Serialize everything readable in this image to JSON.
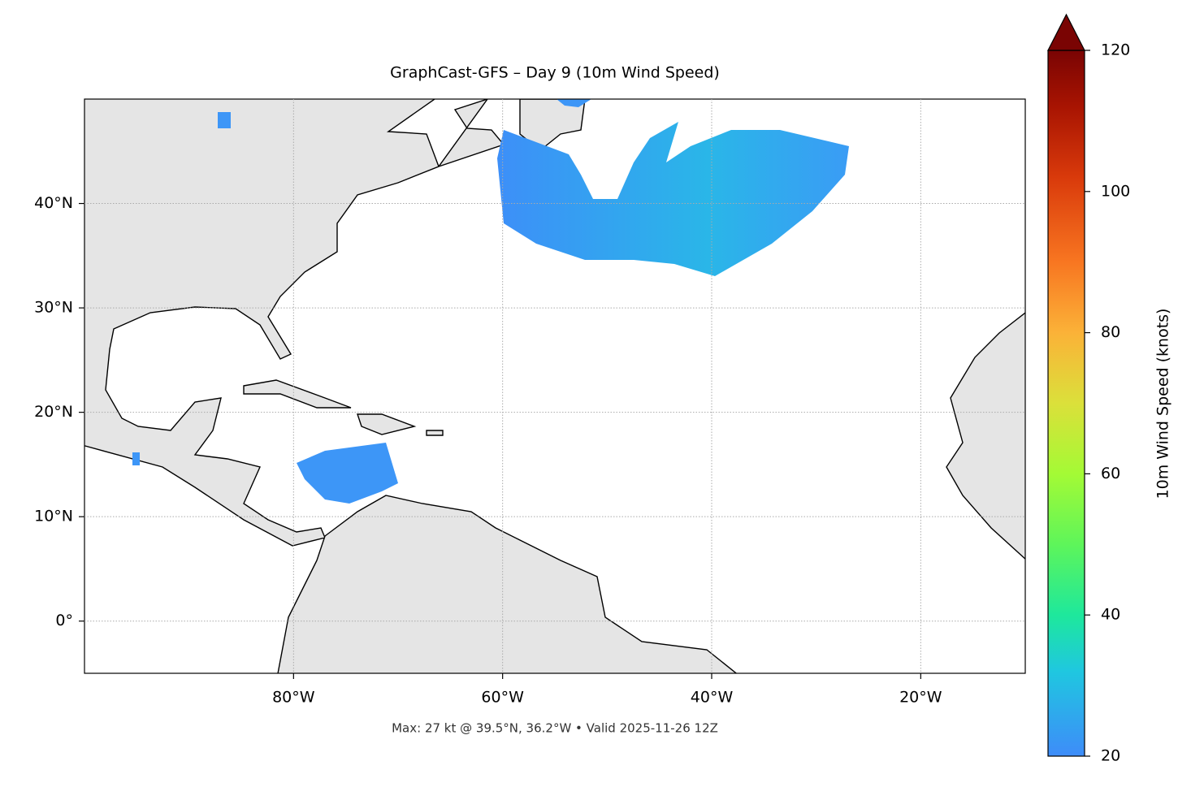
{
  "chart_data": {
    "type": "map",
    "title": "GraphCast-GFS – Day 9 (10m Wind Speed)",
    "footer": "Max: 27 kt @ 39.5°N, 36.2°W • Valid 2025-11-26 12Z",
    "xlim": [
      -100,
      -10
    ],
    "ylim": [
      -5,
      50
    ],
    "xticks": [
      {
        "value": -80,
        "label": "80°W"
      },
      {
        "value": -60,
        "label": "60°W"
      },
      {
        "value": -40,
        "label": "40°W"
      },
      {
        "value": -20,
        "label": "20°W"
      }
    ],
    "yticks": [
      {
        "value": 0,
        "label": "0°"
      },
      {
        "value": 10,
        "label": "10°N"
      },
      {
        "value": 20,
        "label": "20°N"
      },
      {
        "value": 30,
        "label": "30°N"
      },
      {
        "value": 40,
        "label": "40°N"
      }
    ],
    "grid": true,
    "colorbar": {
      "label": "10m Wind Speed (knots)",
      "lim": [
        20,
        120
      ],
      "ticks": [
        20,
        40,
        60,
        80,
        100,
        120
      ],
      "colormap": "turbo",
      "extend": "max"
    }
  }
}
